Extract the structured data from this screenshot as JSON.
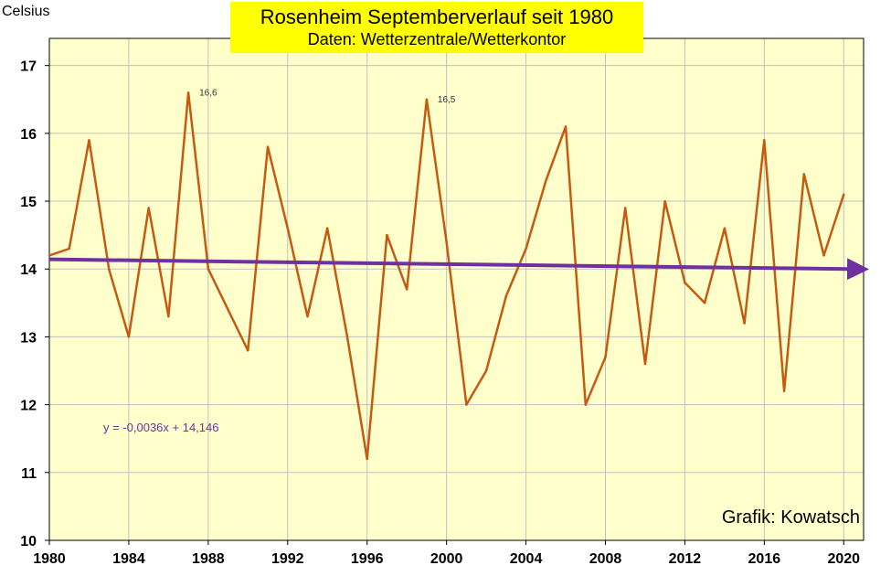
{
  "title": "Rosenheim Septemberverlauf seit 1980",
  "subtitle": "Daten: Wetterzentrale/Wetterkontor",
  "ylabel": "Celsius",
  "credit": "Grafik: Kowatsch",
  "trend_equation": "y = -0,0036x + 14,146",
  "colors": {
    "background": "#ffffcc",
    "series": "#c55a11",
    "trend": "#7030a0",
    "title_box": "#ffff00"
  },
  "chart_data": {
    "type": "line",
    "title": "Rosenheim Septemberverlauf seit 1980",
    "subtitle": "Daten: Wetterzentrale/Wetterkontor",
    "ylabel": "Celsius",
    "xlabel": "",
    "xlim": [
      1980,
      2021
    ],
    "ylim": [
      10,
      17.4
    ],
    "x_ticks": [
      1980,
      1984,
      1988,
      1992,
      1996,
      2000,
      2004,
      2008,
      2012,
      2016,
      2020
    ],
    "y_ticks": [
      10,
      11,
      12,
      13,
      14,
      15,
      16,
      17
    ],
    "grid": true,
    "x": [
      1980,
      1981,
      1982,
      1983,
      1984,
      1985,
      1986,
      1987,
      1988,
      1989,
      1990,
      1991,
      1992,
      1993,
      1994,
      1995,
      1996,
      1997,
      1998,
      1999,
      2000,
      2001,
      2002,
      2003,
      2004,
      2005,
      2006,
      2007,
      2008,
      2009,
      2010,
      2011,
      2012,
      2013,
      2014,
      2015,
      2016,
      2017,
      2018,
      2019,
      2020
    ],
    "series": [
      {
        "values": [
          14.2,
          14.3,
          15.9,
          14.0,
          13.0,
          14.9,
          13.3,
          16.6,
          14.0,
          13.4,
          12.8,
          15.8,
          14.6,
          13.3,
          14.6,
          13.0,
          11.2,
          14.5,
          13.7,
          16.5,
          14.4,
          12.0,
          12.5,
          13.6,
          14.3,
          15.3,
          16.1,
          12.0,
          12.7,
          14.9,
          12.6,
          15.0,
          13.8,
          13.5,
          14.6,
          13.2,
          15.9,
          12.2,
          15.4,
          14.2,
          15.1
        ]
      }
    ],
    "trendline": {
      "slope": -0.0036,
      "intercept": 14.146,
      "x_index_start": 1
    },
    "annotations": [
      {
        "x": 1987,
        "y": 16.6,
        "text": "16,6"
      },
      {
        "x": 1999,
        "y": 16.5,
        "text": "16,5"
      }
    ]
  }
}
